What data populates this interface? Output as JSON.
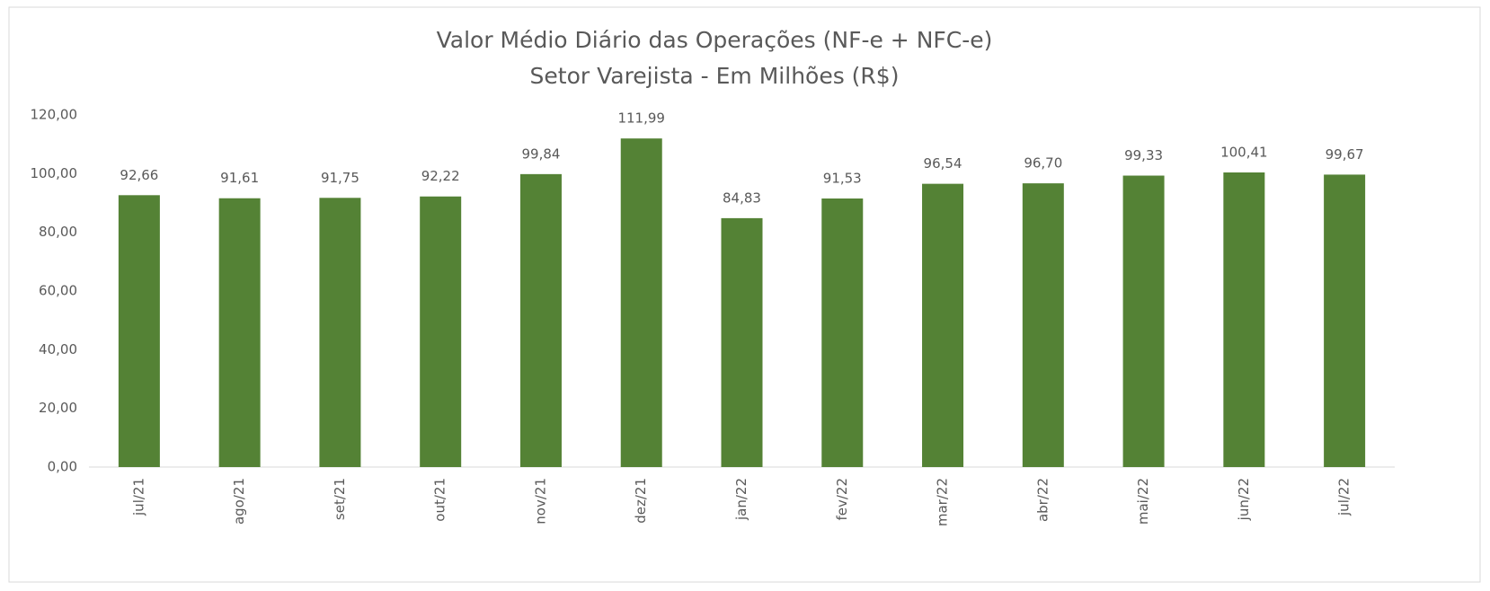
{
  "chart_data": {
    "type": "bar",
    "title": "Valor Médio Diário das Operações (NF-e + NFC-e)",
    "subtitle": "Setor Varejista - Em Milhões (R$)",
    "categories": [
      "jul/21",
      "ago/21",
      "set/21",
      "out/21",
      "nov/21",
      "dez/21",
      "jan/22",
      "fev/22",
      "mar/22",
      "abr/22",
      "mai/22",
      "jun/22",
      "jul/22"
    ],
    "values": [
      92.66,
      91.61,
      91.75,
      92.22,
      99.84,
      111.99,
      84.83,
      91.53,
      96.54,
      96.7,
      99.33,
      100.41,
      99.67
    ],
    "value_labels": [
      "92,66",
      "91,61",
      "91,75",
      "92,22",
      "99,84",
      "111,99",
      "84,83",
      "91,53",
      "96,54",
      "96,70",
      "99,33",
      "100,41",
      "99,67"
    ],
    "color": "#548235",
    "ylim": [
      0,
      120
    ],
    "yticks": [
      {
        "value": 0,
        "label": "0,00"
      },
      {
        "value": 20,
        "label": "20,00"
      },
      {
        "value": 40,
        "label": "40,00"
      },
      {
        "value": 60,
        "label": "60,00"
      },
      {
        "value": 80,
        "label": "80,00"
      },
      {
        "value": 100,
        "label": "100,00"
      },
      {
        "value": 120,
        "label": "120,00"
      }
    ],
    "grid": false
  }
}
